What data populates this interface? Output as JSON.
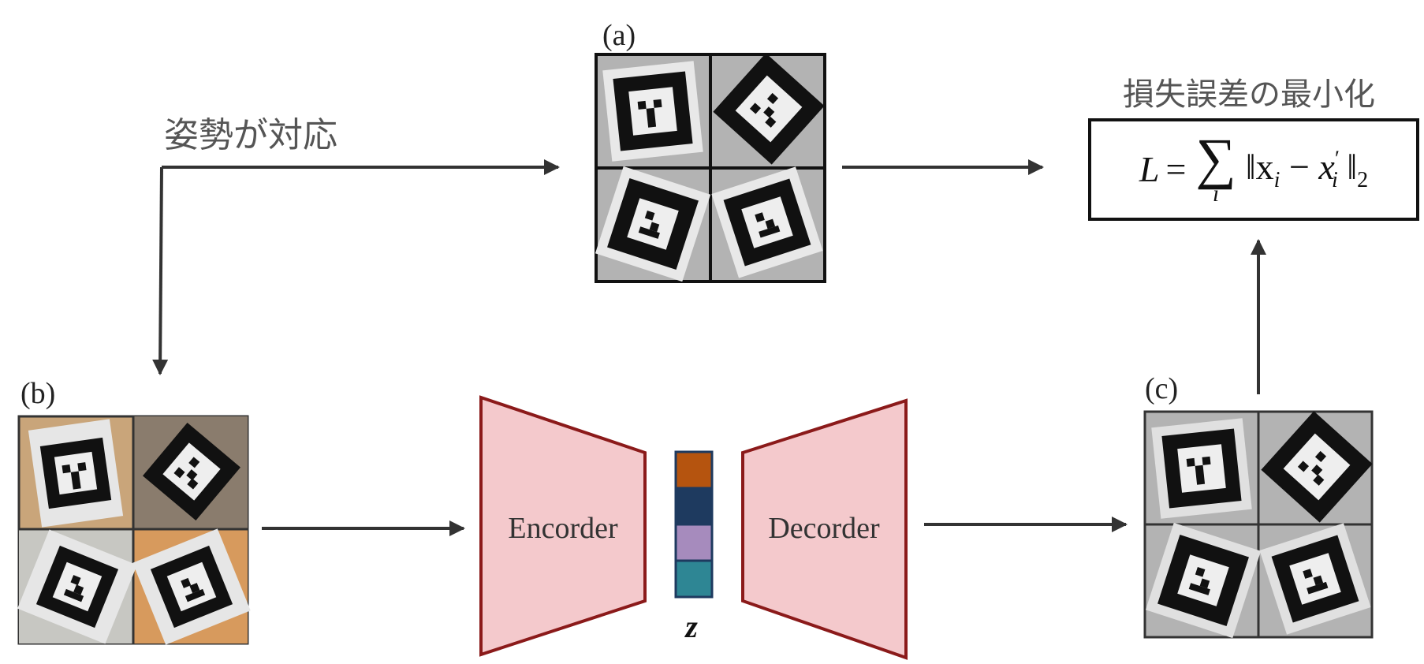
{
  "panels": {
    "a": "(a)",
    "b": "(b)",
    "c": "(c)"
  },
  "annotations": {
    "pose_correspondence": "姿勢が対応",
    "minimize_loss": "損失誤差の最小化"
  },
  "loss": {
    "L": "L",
    "eq": "=",
    "sigma": "∑",
    "sub": "i",
    "body": "‖x",
    "sub_i": "i",
    "minus": "−",
    "x": "x",
    "prime_sub": "′",
    "close": "‖",
    "norm_sub": "2"
  },
  "network": {
    "encoder_label": "Encorder",
    "decoder_label": "Decorder",
    "latent_label": "z",
    "latent_colors": [
      "#b5540f",
      "#1e3a5f",
      "#a68bbd",
      "#2e8694"
    ],
    "block_fill": "#f4c9cc",
    "block_stroke": "#8b1a1a"
  }
}
